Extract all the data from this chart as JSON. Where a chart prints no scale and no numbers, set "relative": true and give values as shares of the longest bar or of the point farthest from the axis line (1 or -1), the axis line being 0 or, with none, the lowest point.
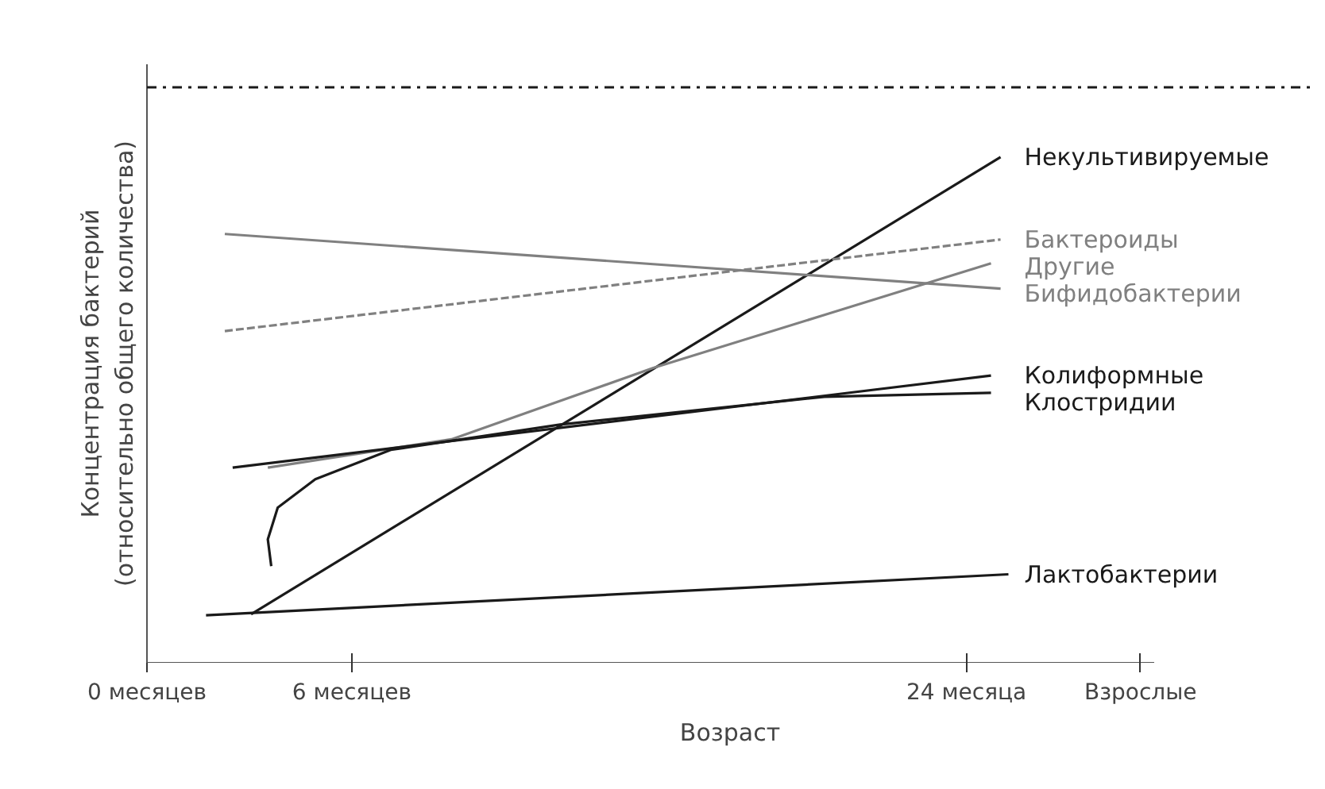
{
  "chart_data": {
    "type": "line",
    "relative": true,
    "xlabel": "Возраст",
    "ylabel": "Концентрация бактерий\n(относительно общего количества)",
    "xlim": [
      0,
      29.5
    ],
    "xticks": [
      {
        "value": 0,
        "label": "0 месяцев"
      },
      {
        "value": 6,
        "label": "6 месяцев"
      },
      {
        "value": 24,
        "label": "24 месяца"
      },
      {
        "value": 29.1,
        "label": "Взрослые"
      }
    ],
    "grid": false,
    "legend": false,
    "marker": "none",
    "line_style": "solid",
    "ref_lines": [
      {
        "axis": "y",
        "value": 1.138,
        "label": null,
        "color": "#1a1a1a",
        "line_style": "dashdot"
      }
    ],
    "series": [
      {
        "name": "Некультивируемые",
        "color": "#1a1a1a",
        "x": [
          3.05,
          25.0
        ],
        "values": [
          0.096,
          1.0
        ]
      },
      {
        "name": "Бактероиды",
        "color": "#808080",
        "line_style": "dashed",
        "x": [
          2.28,
          25.0
        ],
        "values": [
          0.656,
          0.837
        ]
      },
      {
        "name": "Другие",
        "color": "#808080",
        "x": [
          3.54,
          8.92,
          14.83,
          19.84,
          24.72
        ],
        "values": [
          0.386,
          0.442,
          0.583,
          0.688,
          0.79
        ]
      },
      {
        "name": "Бифидобактерии",
        "color": "#808080",
        "x": [
          2.28,
          25.0
        ],
        "values": [
          0.848,
          0.74
        ]
      },
      {
        "name": "Колиформные",
        "color": "#1a1a1a",
        "x": [
          2.51,
          24.72
        ],
        "values": [
          0.386,
          0.568
        ]
      },
      {
        "name": "Клостридии",
        "color": "#1a1a1a",
        "x": [
          3.64,
          3.54,
          3.83,
          4.93,
          7.14,
          12.1,
          19.84,
          24.72
        ],
        "values": [
          0.191,
          0.244,
          0.307,
          0.363,
          0.421,
          0.471,
          0.526,
          0.534
        ]
      },
      {
        "name": "Лактобактерии",
        "color": "#1a1a1a",
        "x": [
          1.73,
          25.23
        ],
        "values": [
          0.094,
          0.175
        ]
      }
    ]
  }
}
